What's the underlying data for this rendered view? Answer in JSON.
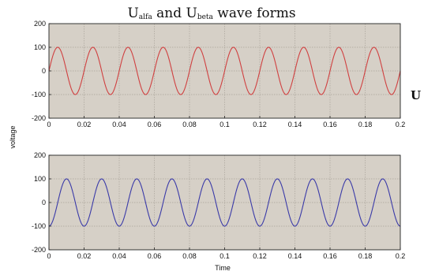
{
  "figure": {
    "title_parts": [
      "U",
      "alfa",
      " and U",
      "beta",
      " wave forms"
    ],
    "side_label": "U",
    "ylabel": "voltage",
    "xlabel": "Time",
    "plot_background": "#d6d0c7",
    "grid_color": "#a9a39a"
  },
  "chart_data": [
    {
      "type": "line",
      "name": "top-plot",
      "xlim": [
        0,
        0.2
      ],
      "ylim": [
        -200,
        200
      ],
      "xticks": [
        0,
        0.02,
        0.04,
        0.06,
        0.08,
        0.1,
        0.12,
        0.14,
        0.16,
        0.18,
        0.2
      ],
      "xtick_labels": [
        "0",
        "0.02",
        "0.04",
        "0.06",
        "0.08",
        "0.1",
        "0.12",
        "0.14",
        "0.16",
        "0.18",
        "0.2"
      ],
      "yticks": [
        -200,
        -100,
        0,
        100,
        200
      ],
      "ytick_labels": [
        "-200",
        "-100",
        "0",
        "100",
        "200"
      ],
      "grid": true,
      "series": [
        {
          "function": "sine",
          "amplitude": 100,
          "frequency_hz": 50,
          "phase_deg": 0,
          "color": "#d04040"
        }
      ]
    },
    {
      "type": "line",
      "name": "bottom-plot",
      "xlim": [
        0,
        0.2
      ],
      "ylim": [
        -200,
        200
      ],
      "xticks": [
        0,
        0.02,
        0.04,
        0.06,
        0.08,
        0.1,
        0.12,
        0.14,
        0.16,
        0.18,
        0.2
      ],
      "xtick_labels": [
        "0",
        "0.02",
        "0.04",
        "0.06",
        "0.08",
        "0.1",
        "0.12",
        "0.14",
        "0.16",
        "0.18",
        "0.2"
      ],
      "yticks": [
        -200,
        -100,
        0,
        100,
        200
      ],
      "ytick_labels": [
        "-200",
        "-100",
        "0",
        "100",
        "200"
      ],
      "grid": true,
      "series": [
        {
          "function": "sine",
          "amplitude": 100,
          "frequency_hz": 50,
          "phase_deg": -90,
          "color": "#3a3aa8"
        }
      ]
    }
  ]
}
